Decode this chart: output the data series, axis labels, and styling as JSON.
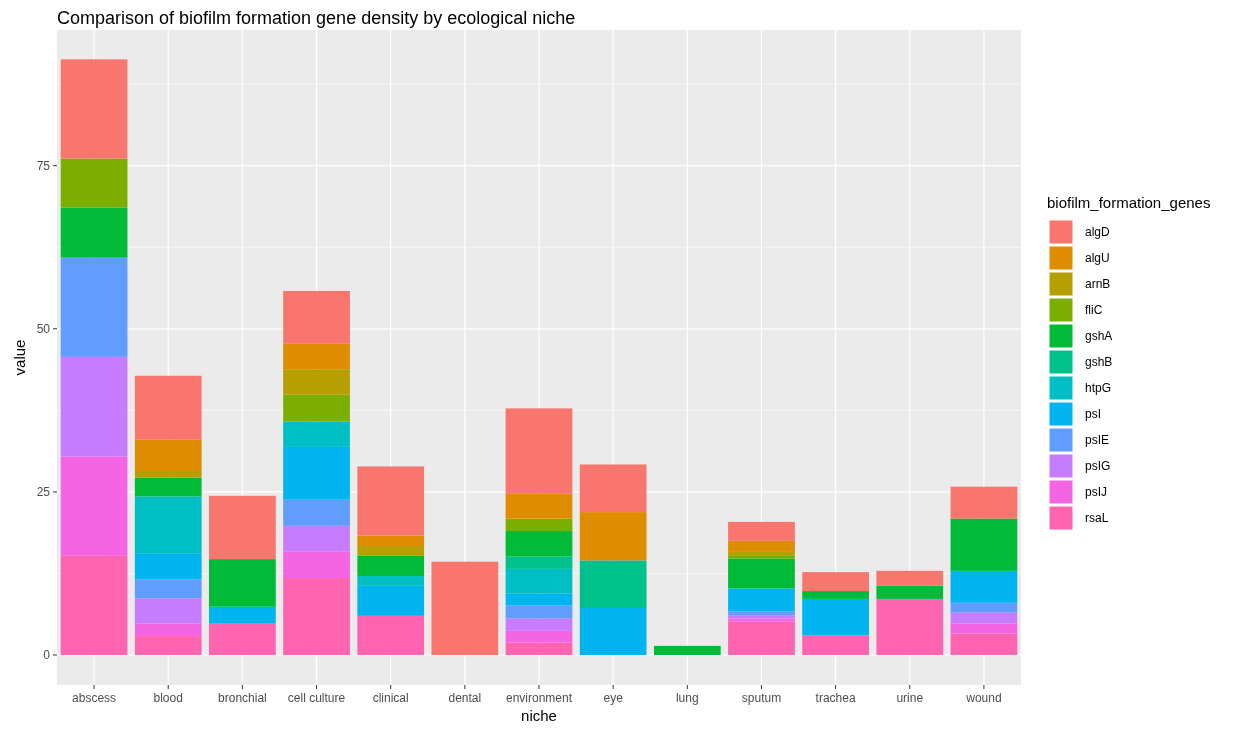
{
  "chart_data": {
    "type": "bar",
    "title": "Comparison of biofilm formation gene density by ecological niche",
    "xlabel": "niche",
    "ylabel": "value",
    "legend_title": "biofilm_formation_genes",
    "stacked": true,
    "grid": true,
    "legend": "right",
    "categories": [
      "abscess",
      "blood",
      "bronchial",
      "cell culture",
      "clinical",
      "dental",
      "environment",
      "eye",
      "lung",
      "sputum",
      "trachea",
      "urine",
      "wound"
    ],
    "ylim": [
      -4.6,
      95.8
    ],
    "yticks": [
      0,
      25,
      50,
      75
    ],
    "series": [
      {
        "name": "rsaL",
        "color": "#ff64b0",
        "values": [
          15.2,
          2.9,
          4.8,
          11.8,
          6.0,
          0,
          1.9,
          0,
          0,
          5.1,
          3.0,
          8.6,
          3.3
        ]
      },
      {
        "name": "psIJ",
        "color": "#f564e3",
        "values": [
          15.2,
          1.9,
          0,
          4.1,
          0,
          0,
          1.8,
          0,
          0,
          0.5,
          0,
          0,
          1.5
        ]
      },
      {
        "name": "psIG",
        "color": "#c77cff",
        "values": [
          15.3,
          3.9,
          0,
          3.9,
          0,
          0,
          1.9,
          0,
          0,
          0.5,
          0,
          0,
          1.7
        ]
      },
      {
        "name": "psIE",
        "color": "#619cff",
        "values": [
          15.2,
          2.9,
          0,
          4.0,
          0,
          0,
          2.0,
          0,
          0,
          0.6,
          0,
          0,
          1.5
        ]
      },
      {
        "name": "psI",
        "color": "#00b4f0",
        "values": [
          0,
          4.0,
          2.6,
          8.1,
          4.6,
          0,
          1.8,
          7.2,
          0,
          3.5,
          5.6,
          0,
          4.9
        ]
      },
      {
        "name": "htpG",
        "color": "#00bfc4",
        "values": [
          0,
          8.7,
          0,
          3.9,
          1.5,
          0,
          3.8,
          0,
          0,
          0,
          0,
          0,
          0
        ]
      },
      {
        "name": "gshB",
        "color": "#00c08b",
        "values": [
          0,
          0,
          0,
          0,
          0,
          0,
          1.9,
          7.3,
          0,
          0,
          0,
          0,
          0
        ]
      },
      {
        "name": "gshA",
        "color": "#00ba38",
        "values": [
          7.7,
          2.9,
          7.3,
          0,
          3.1,
          0,
          3.9,
          0,
          1.4,
          4.6,
          1.2,
          2.0,
          8.0
        ]
      },
      {
        "name": "fliC",
        "color": "#7cae00",
        "values": [
          7.5,
          0,
          0,
          4.1,
          0,
          0,
          1.9,
          0,
          0,
          0.5,
          0,
          0,
          0
        ]
      },
      {
        "name": "arnB",
        "color": "#b79f00",
        "values": [
          0,
          1.0,
          0,
          3.9,
          1.5,
          0,
          0,
          0,
          0,
          0.5,
          0,
          0,
          0
        ]
      },
      {
        "name": "algU",
        "color": "#de8c00",
        "values": [
          0,
          4.8,
          0,
          3.9,
          1.6,
          0,
          3.8,
          7.4,
          0,
          1.7,
          0,
          0,
          0
        ]
      },
      {
        "name": "algD",
        "color": "#f8766d",
        "values": [
          15.2,
          9.8,
          9.7,
          8.1,
          10.6,
          14.3,
          13.1,
          7.3,
          0,
          2.9,
          2.9,
          2.3,
          4.9
        ]
      }
    ]
  }
}
